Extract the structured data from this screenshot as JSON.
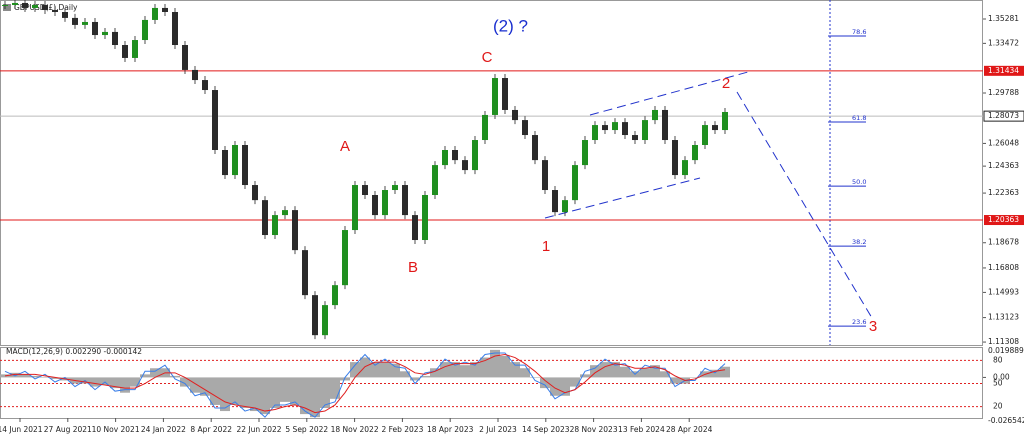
{
  "chart_data": {
    "type": "candlestick",
    "title": "GBPUSD(£),Daily",
    "closes": [
      1.3632,
      1.3647,
      1.361,
      1.3632,
      1.3595,
      1.358,
      1.3536,
      1.3484,
      1.3506,
      1.3409,
      1.3432,
      1.3335,
      1.3239,
      1.3372,
      1.3521,
      1.361,
      1.358,
      1.3335,
      1.315,
      1.3075,
      1.3001,
      1.2556,
      1.237,
      1.2593,
      1.2296,
      1.2184,
      1.1925,
      1.2073,
      1.211,
      1.1813,
      1.1479,
      1.1182,
      1.1405,
      1.1553,
      1.1962,
      1.2296,
      1.2222,
      1.2073,
      1.2259,
      1.2296,
      1.2073,
      1.1888,
      1.2222,
      1.2444,
      1.2556,
      1.2481,
      1.2407,
      1.263,
      1.2816,
      1.309,
      1.2853,
      1.2778,
      1.2667,
      1.2481,
      1.2259,
      1.2095,
      1.2184,
      1.2444,
      1.263,
      1.2741,
      1.2704,
      1.2763,
      1.2667,
      1.263,
      1.2778,
      1.2853,
      1.263,
      1.237,
      1.2481,
      1.2593,
      1.2741,
      1.2704,
      1.2838
    ],
    "up_color": "#1f8f1f",
    "down_color": "#2b2b2b",
    "ylim": [
      1.1109,
      1.3669
    ],
    "yticks": [
      1.35281,
      1.33472,
      1.29788,
      1.26048,
      1.24363,
      1.22363,
      1.18678,
      1.16808,
      1.14993,
      1.13123,
      1.11308
    ],
    "levels": [
      {
        "value": 1.31434,
        "color": "#e01818"
      },
      {
        "value": 1.20363,
        "color": "#e01818"
      }
    ],
    "current_price": 1.28073,
    "fibonacci": {
      "color": "#2233cc",
      "levels": [
        78.6,
        61.8,
        {
          "value": 50,
          "label": "50.0"
        },
        38.2,
        23.6
      ],
      "prices": [
        1.3402,
        1.2764,
        1.2288,
        1.1843,
        1.1249
      ]
    },
    "annotations": [
      "(2) ?",
      "C",
      "A",
      "B",
      "1",
      "2",
      "3"
    ],
    "categories": [
      "14 Jun 2021",
      "27 Aug 2021",
      "10 Nov 2021",
      "24 Jan 2022",
      "8 Apr 2022",
      "22 Jun 2022",
      "5 Sep 2022",
      "18 Nov 2022",
      "2 Feb 2023",
      "18 Apr 2023",
      "2 Jul 2023",
      "14 Sep 2023",
      "28 Nov 2023",
      "13 Feb 2024",
      "28 Apr 2024"
    ],
    "macd": {
      "title": "MACD(12,26,9) 0.002290 -0.000142",
      "ylim": [
        -0.026542,
        0.019889
      ],
      "yticks": [
        {
          "value": 0,
          "label": "0.00"
        }
      ],
      "histogram": [
        0.002,
        0.003,
        0.002,
        0.001,
        0,
        -0.001,
        -0.002,
        -0.004,
        -0.004,
        -0.006,
        -0.005,
        -0.007,
        -0.01,
        -0.006,
        0.002,
        0.006,
        0.006,
        0.001,
        -0.006,
        -0.01,
        -0.012,
        -0.018,
        -0.022,
        -0.018,
        -0.02,
        -0.022,
        -0.024,
        -0.02,
        -0.016,
        -0.018,
        -0.024,
        -0.026,
        -0.02,
        -0.014,
        -0.002,
        0.01,
        0.013,
        0.01,
        0.01,
        0.009,
        0.004,
        -0.002,
        0.001,
        0.006,
        0.01,
        0.01,
        0.008,
        0.01,
        0.013,
        0.018,
        0.014,
        0.01,
        0.006,
        0,
        -0.007,
        -0.012,
        -0.012,
        -0.006,
        0.002,
        0.008,
        0.01,
        0.01,
        0.007,
        0.004,
        0.006,
        0.008,
        0.004,
        -0.004,
        -0.004,
        0,
        0.004,
        0.005,
        0.007
      ],
      "signal": [
        0.001,
        0.002,
        0.002,
        0.002,
        0.001,
        0,
        -0.001,
        -0.002,
        -0.003,
        -0.004,
        -0.005,
        -0.006,
        -0.007,
        -0.007,
        -0.004,
        0,
        0.003,
        0.003,
        0,
        -0.004,
        -0.008,
        -0.012,
        -0.016,
        -0.018,
        -0.019,
        -0.02,
        -0.022,
        -0.021,
        -0.019,
        -0.018,
        -0.02,
        -0.023,
        -0.022,
        -0.018,
        -0.01,
        0,
        0.007,
        0.01,
        0.01,
        0.01,
        0.007,
        0.003,
        0.002,
        0.004,
        0.007,
        0.009,
        0.009,
        0.009,
        0.011,
        0.014,
        0.015,
        0.013,
        0.009,
        0.004,
        -0.002,
        -0.007,
        -0.01,
        -0.008,
        -0.003,
        0.003,
        0.007,
        0.009,
        0.008,
        0.006,
        0.006,
        0.007,
        0.005,
        0.001,
        -0.002,
        -0.001,
        0.002,
        0.004,
        0.005
      ],
      "main": [
        0.004,
        0.001,
        0.004,
        -0.001,
        0.002,
        -0.003,
        0,
        -0.006,
        -0.002,
        -0.008,
        -0.003,
        -0.009,
        -0.008,
        -0.008,
        0.004,
        0.004,
        0.008,
        -0.001,
        -0.004,
        -0.012,
        -0.01,
        -0.02,
        -0.02,
        -0.016,
        -0.022,
        -0.02,
        -0.026,
        -0.018,
        -0.018,
        -0.016,
        -0.022,
        -0.026,
        -0.018,
        -0.016,
        0,
        0.008,
        0.015,
        0.008,
        0.012,
        0.007,
        0.006,
        -0.004,
        0.003,
        0.004,
        0.012,
        0.008,
        0.01,
        0.008,
        0.015,
        0.016,
        0.016,
        0.008,
        0.008,
        -0.002,
        -0.005,
        -0.014,
        -0.01,
        -0.008,
        0.004,
        0.006,
        0.012,
        0.008,
        0.009,
        0.002,
        0.008,
        0.006,
        0.006,
        -0.006,
        -0.002,
        -0.002,
        0.006,
        0.003,
        0.009
      ],
      "histogram_color": "#a9a9a9",
      "signal_color": "#e02020",
      "main_color": "#3a7ee8",
      "osc_ylim": [
        0,
        100
      ],
      "osc_levels": [
        80,
        50,
        20
      ]
    }
  }
}
